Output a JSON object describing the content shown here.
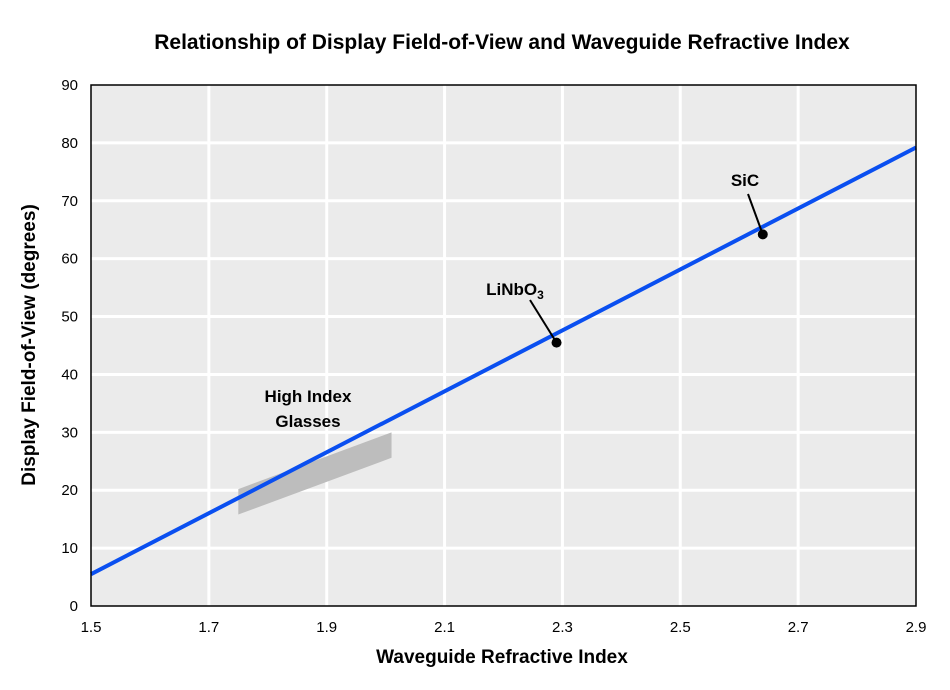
{
  "chart_data": {
    "type": "line",
    "title": "Relationship of Display Field-of-View and Waveguide Refractive Index",
    "xlabel": "Waveguide Refractive Index",
    "ylabel": "Display Field-of-View (degrees)",
    "xlim": [
      1.5,
      2.9
    ],
    "ylim": [
      0,
      90
    ],
    "xticks": [
      "1.5",
      "1.7",
      "1.9",
      "2.1",
      "2.3",
      "2.5",
      "2.7",
      "2.9"
    ],
    "yticks": [
      "0",
      "10",
      "20",
      "30",
      "40",
      "50",
      "60",
      "70",
      "80",
      "90"
    ],
    "grid": true,
    "background": "#ebebeb",
    "series": [
      {
        "color": "#0a4ff0",
        "x": [
          1.5,
          2.9
        ],
        "y": [
          5.5,
          79.2
        ]
      }
    ],
    "band": {
      "label_line1": "High Index",
      "label_line2": "Glasses",
      "x": [
        1.75,
        2.01
      ],
      "y_center": [
        18.0,
        27.8
      ],
      "half_width": 2.2,
      "color": "#bdbdbd"
    },
    "points": [
      {
        "label": "LiNbO",
        "subscript": "3",
        "x": 2.29,
        "y": 45.5
      },
      {
        "label": "SiC",
        "x": 2.64,
        "y": 64.2
      }
    ]
  }
}
